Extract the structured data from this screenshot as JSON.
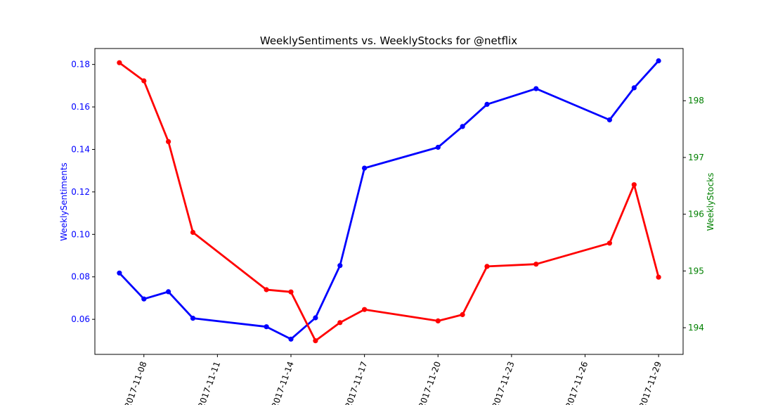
{
  "chart_data": {
    "type": "line",
    "title": "WeeklySentiments vs. WeeklyStocks for @netflix",
    "xlabel": "",
    "x": [
      "2017-11-07",
      "2017-11-08",
      "2017-11-09",
      "2017-11-10",
      "2017-11-13",
      "2017-11-14",
      "2017-11-15",
      "2017-11-16",
      "2017-11-17",
      "2017-11-20",
      "2017-11-21",
      "2017-11-22",
      "2017-11-24",
      "2017-11-27",
      "2017-11-28",
      "2017-11-29"
    ],
    "x_ticks": [
      "2017-11-08",
      "2017-11-11",
      "2017-11-14",
      "2017-11-17",
      "2017-11-20",
      "2017-11-23",
      "2017-11-26",
      "2017-11-29"
    ],
    "x_range": [
      "2017-11-06",
      "2017-11-30"
    ],
    "series": [
      {
        "name": "WeeklySentiments",
        "axis": "left",
        "color": "#0000ff",
        "values": [
          0.0818,
          0.0696,
          0.073,
          0.0605,
          0.0565,
          0.0507,
          0.0607,
          0.0853,
          0.1312,
          0.141,
          0.1508,
          0.1612,
          0.1686,
          0.1539,
          0.169,
          0.1817
        ]
      },
      {
        "name": "WeeklyStocks",
        "axis": "right",
        "color": "#ff0000",
        "values": [
          198.67,
          198.35,
          197.28,
          195.68,
          194.67,
          194.63,
          193.77,
          194.09,
          194.32,
          194.12,
          194.23,
          195.08,
          195.12,
          195.49,
          196.52,
          194.89
        ]
      }
    ],
    "y_left": {
      "label": "WeeklySentiments",
      "range": [
        0.0435,
        0.1875
      ],
      "ticks": [
        "0.06",
        "0.08",
        "0.10",
        "0.12",
        "0.14",
        "0.16",
        "0.18"
      ]
    },
    "y_right": {
      "label": "WeeklyStocks",
      "range": [
        193.53,
        198.92
      ],
      "ticks": [
        "194",
        "195",
        "196",
        "197",
        "198"
      ]
    },
    "grid": false,
    "legend": "none"
  }
}
